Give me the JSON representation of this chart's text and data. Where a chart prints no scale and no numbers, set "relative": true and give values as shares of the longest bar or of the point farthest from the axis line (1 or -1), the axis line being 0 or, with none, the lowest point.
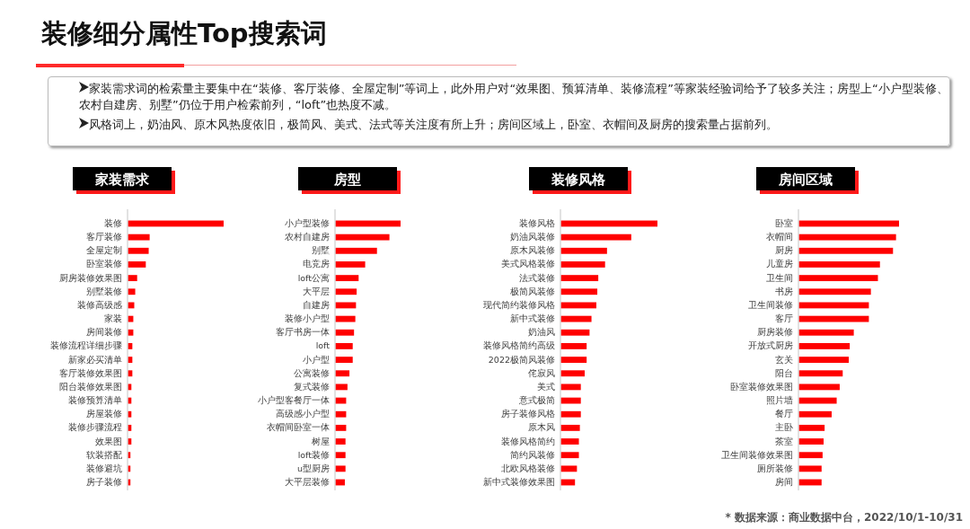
{
  "chart_data": [
    {
      "type": "other",
      "title": "装修细分属性Top搜索词",
      "annotations": [
        "家装需求词的检索量主要集中在“装修、客厅装修、全屋定制”等词上，此外用户对“效果图、预算清单、装修流程”等家装经验词给予了较多关注；房型上“小户型装修、农村自建房、别墅”仍位于用户检索前列，“loft”也热度不减。",
        "风格词上，奶油风、原木风热度依旧，极简风、美式、法式等关注度有所上升；房间区域上，卧室、衣帽间及厨房的搜索量占据前列。",
        "* 数据来源：商业数据中台，2022/10/1-10/31"
      ]
    },
    {
      "type": "bar",
      "title": "家装需求",
      "orientation": "horizontal",
      "relative": true,
      "color": "#ff0000",
      "categories": [
        "装修",
        "客厅装修",
        "全屋定制",
        "卧室装修",
        "厨房装修效果图",
        "别墅装修",
        "装修高级感",
        "家装",
        "房间装修",
        "装修流程详细步骤",
        "新家必买清单",
        "客厅装修效果图",
        "阳台装修效果图",
        "装修预算清单",
        "房屋装修",
        "装修步骤流程",
        "效果图",
        "软装搭配",
        "装修避坑",
        "房子装修"
      ],
      "values": [
        1,
        0.23,
        0.22,
        0.19,
        0.1,
        0.08,
        0.07,
        0.06,
        0.06,
        0.05,
        0.05,
        0.05,
        0.04,
        0.04,
        0.04,
        0.04,
        0.04,
        0.03,
        0.03,
        0.03
      ]
    },
    {
      "type": "bar",
      "title": "房型",
      "orientation": "horizontal",
      "relative": true,
      "color": "#ff0000",
      "categories": [
        "小户型装修",
        "农村自建房",
        "别墅",
        "电竞房",
        "loft公寓",
        "大平层",
        "自建房",
        "装修小户型",
        "客厅书房一体",
        "loft",
        "小户型",
        "公寓装修",
        "复式装修",
        "小户型客餐厅一体",
        "高级感小户型",
        "衣帽间卧室一体",
        "树屋",
        "loft装修",
        "u型厨房",
        "大平层装修"
      ],
      "values": [
        1,
        0.83,
        0.64,
        0.46,
        0.36,
        0.33,
        0.32,
        0.31,
        0.29,
        0.27,
        0.27,
        0.22,
        0.19,
        0.17,
        0.17,
        0.17,
        0.16,
        0.16,
        0.16,
        0.15
      ]
    },
    {
      "type": "bar",
      "title": "装修风格",
      "orientation": "horizontal",
      "relative": true,
      "color": "#ff0000",
      "categories": [
        "装修风格",
        "奶油风装修",
        "原木风装修",
        "美式风格装修",
        "法式装修",
        "极简风装修",
        "现代简约装修风格",
        "新中式装修",
        "奶油风",
        "装修风格简约高级",
        "2022极简风装修",
        "侘寂风",
        "美式",
        "意式极简",
        "房子装修风格",
        "原木风",
        "装修风格简约",
        "简约风装修",
        "北欧风格装修",
        "新中式装修效果图"
      ],
      "values": [
        1,
        0.73,
        0.48,
        0.46,
        0.39,
        0.38,
        0.37,
        0.32,
        0.3,
        0.27,
        0.27,
        0.25,
        0.21,
        0.21,
        0.21,
        0.2,
        0.19,
        0.19,
        0.17,
        0.15
      ]
    },
    {
      "type": "bar",
      "title": "房间区域",
      "orientation": "horizontal",
      "relative": true,
      "color": "#ff0000",
      "categories": [
        "卧室",
        "衣帽间",
        "厨房",
        "儿童房",
        "卫生间",
        "书房",
        "卫生间装修",
        "客厅",
        "厨房装修",
        "开放式厨房",
        "玄关",
        "阳台",
        "卧室装修效果图",
        "照片墙",
        "餐厅",
        "主卧",
        "茶室",
        "卫生间装修效果图",
        "厕所装修",
        "房间"
      ],
      "values": [
        1,
        0.97,
        0.94,
        0.81,
        0.79,
        0.72,
        0.7,
        0.7,
        0.55,
        0.51,
        0.5,
        0.44,
        0.41,
        0.38,
        0.33,
        0.26,
        0.25,
        0.24,
        0.23,
        0.23
      ]
    }
  ]
}
